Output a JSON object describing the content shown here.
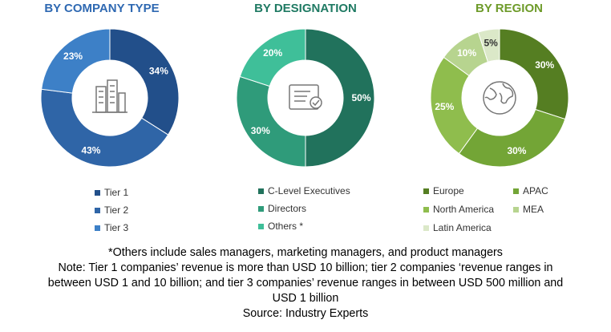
{
  "titles": [
    "BY COMPANY TYPE",
    "BY DESIGNATION",
    "BY REGION"
  ],
  "title_colors": [
    "#2f69b2",
    "#1f7a63",
    "#6e9b2a"
  ],
  "chart_data": [
    {
      "type": "pie",
      "title": "BY COMPANY TYPE",
      "icon": "buildings-icon",
      "slices": [
        {
          "label": "Tier 1",
          "value": 34,
          "color": "#224f8a"
        },
        {
          "label": "Tier 2",
          "value": 43,
          "color": "#2f65a7"
        },
        {
          "label": "Tier 3",
          "value": 23,
          "color": "#3d80c7"
        }
      ]
    },
    {
      "type": "pie",
      "title": "BY DESIGNATION",
      "icon": "certificate-icon",
      "slices": [
        {
          "label": "C-Level Executives",
          "value": 50,
          "color": "#21725c"
        },
        {
          "label": "Directors",
          "value": 30,
          "color": "#2f9b7a"
        },
        {
          "label": "Others *",
          "value": 20,
          "color": "#3fbf99"
        }
      ]
    },
    {
      "type": "pie",
      "title": "BY REGION",
      "icon": "globe-icon",
      "slices": [
        {
          "label": "Europe",
          "value": 30,
          "color": "#557e22"
        },
        {
          "label": "APAC",
          "value": 30,
          "color": "#73a536"
        },
        {
          "label": "North America",
          "value": 25,
          "color": "#8fbd4d"
        },
        {
          "label": "MEA",
          "value": 10,
          "color": "#b7d48f"
        },
        {
          "label": "Latin America",
          "value": 5,
          "color": "#dbe8c8"
        }
      ]
    }
  ],
  "legend_labels": {
    "company": [
      "Tier 1",
      "Tier 2",
      "Tier 3"
    ],
    "designation": [
      "C-Level Executives",
      "Directors",
      "Others *"
    ],
    "region": [
      "Europe",
      "APAC",
      "North America",
      "MEA",
      "Latin America"
    ]
  },
  "notes": {
    "line1": "*Others include sales managers, marketing managers, and product managers",
    "line2": "Note: Tier 1 companies’ revenue is more than USD 10 billion; tier 2 companies ‘revenue ranges in",
    "line3": "between USD 1 and 10 billion; and tier 3 companies’ revenue ranges in between USD 500 million and",
    "line4": "USD 1 billion",
    "line5": "Source: Industry Experts"
  }
}
